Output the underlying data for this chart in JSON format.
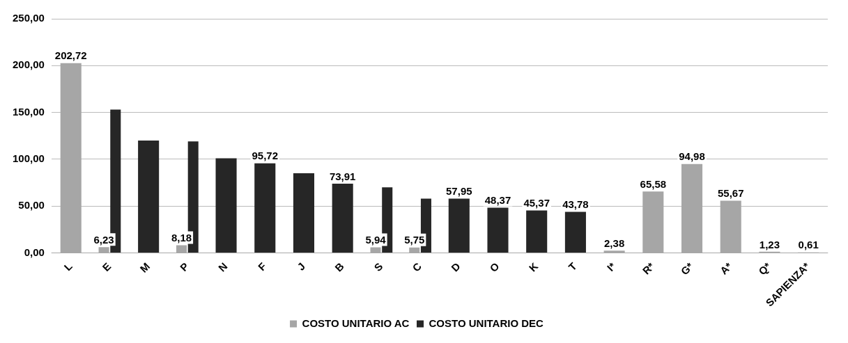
{
  "chart_data": {
    "type": "bar",
    "categories": [
      "L",
      "E",
      "M",
      "P",
      "N",
      "F",
      "J",
      "B",
      "S",
      "C",
      "D",
      "O",
      "K",
      "T",
      "I*",
      "R*",
      "G*",
      "A*",
      "Q*",
      "SAPIENZA*"
    ],
    "series": [
      {
        "name": "COSTO UNITARIO AC",
        "color": "#a6a6a6",
        "values": [
          202.72,
          6.23,
          null,
          8.18,
          null,
          null,
          null,
          null,
          5.94,
          5.75,
          null,
          null,
          null,
          null,
          2.38,
          65.58,
          94.98,
          55.67,
          1.23,
          0.61
        ],
        "value_labels": [
          "202,72",
          "6,23",
          null,
          "8,18",
          null,
          null,
          null,
          null,
          "5,94",
          "5,75",
          null,
          null,
          null,
          null,
          "2,38",
          "65,58",
          "94,98",
          "55,67",
          "1,23",
          "0,61"
        ]
      },
      {
        "name": "COSTO UNITARIO DEC",
        "color": "#262626",
        "values": [
          null,
          153,
          120,
          119,
          101,
          95.72,
          85,
          73.91,
          70,
          58,
          57.95,
          48.37,
          45.37,
          43.78,
          null,
          null,
          null,
          null,
          null,
          null
        ],
        "value_labels": [
          null,
          null,
          null,
          null,
          null,
          "95,72",
          null,
          "73,91",
          null,
          null,
          "57,95",
          "48,37",
          "45,37",
          "43,78",
          null,
          null,
          null,
          null,
          null,
          null
        ]
      }
    ],
    "ylim": [
      0,
      250
    ],
    "yticks": [
      {
        "value": 0,
        "label": "0,00"
      },
      {
        "value": 50,
        "label": "50,00"
      },
      {
        "value": 100,
        "label": "100,00"
      },
      {
        "value": 150,
        "label": "150,00"
      },
      {
        "value": 200,
        "label": "200,00"
      },
      {
        "value": 250,
        "label": "250,00"
      }
    ],
    "grid": "y",
    "legend": "bottom"
  }
}
